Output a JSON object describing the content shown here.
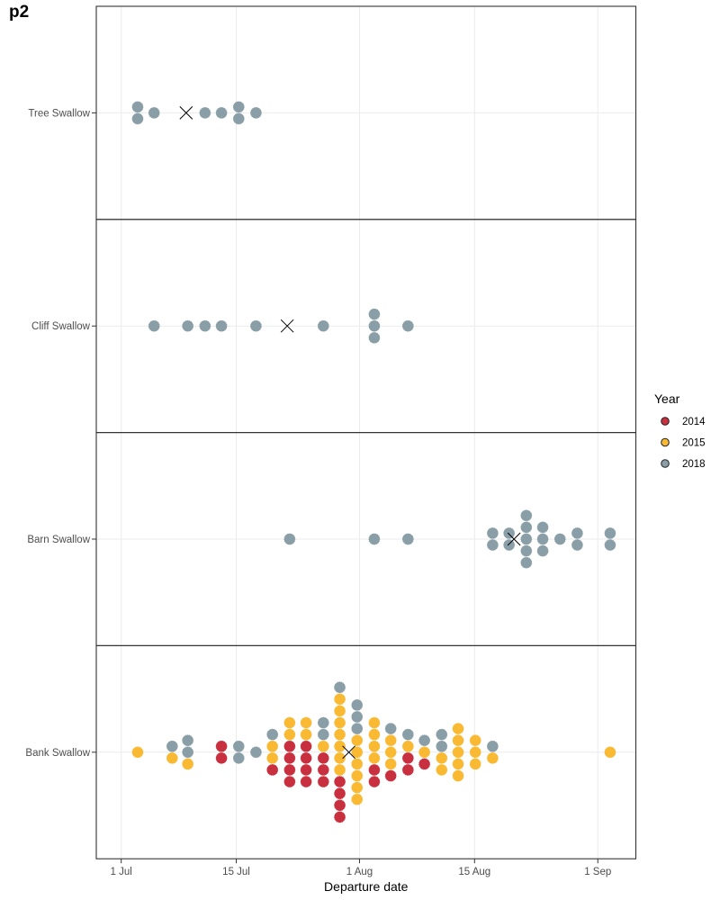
{
  "plot_tag": "p2",
  "chart_data": {
    "type": "dotplot",
    "title": "p2",
    "xlabel": "Departure date",
    "ylabel": "",
    "x_units": "days since 1 Jul",
    "xlim": [
      -2.9,
      62.9
    ],
    "x_ticks": [
      {
        "value": 0,
        "label": "1 Jul"
      },
      {
        "value": 14,
        "label": "15 Jul"
      },
      {
        "value": 29,
        "label": "1 Aug"
      },
      {
        "value": 43,
        "label": "15 Aug"
      },
      {
        "value": 58,
        "label": "1 Sep"
      }
    ],
    "grid": true,
    "legend": {
      "title": "Year",
      "position": "right",
      "entries": [
        {
          "label": "2014",
          "color": "#C9303F"
        },
        {
          "label": "2015",
          "color": "#F9B933"
        },
        {
          "label": "2018",
          "color": "#8A9EA7"
        }
      ]
    },
    "mean_marker": "cross",
    "panels": [
      {
        "species": "Tree Swallow",
        "mean": 7.9,
        "columns": [
          {
            "x": 2.0,
            "stack": [
              "2018",
              "2018"
            ]
          },
          {
            "x": 4.0,
            "stack": [
              "2018"
            ]
          },
          {
            "x": 10.2,
            "stack": [
              "2018"
            ]
          },
          {
            "x": 12.2,
            "stack": [
              "2018"
            ]
          },
          {
            "x": 14.3,
            "stack": [
              "2018",
              "2018"
            ]
          },
          {
            "x": 16.4,
            "stack": [
              "2018"
            ]
          }
        ]
      },
      {
        "species": "Cliff Swallow",
        "mean": 20.2,
        "columns": [
          {
            "x": 4.0,
            "stack": [
              "2018"
            ]
          },
          {
            "x": 8.1,
            "stack": [
              "2018"
            ]
          },
          {
            "x": 10.2,
            "stack": [
              "2018"
            ]
          },
          {
            "x": 12.2,
            "stack": [
              "2018"
            ]
          },
          {
            "x": 16.4,
            "stack": [
              "2018"
            ]
          },
          {
            "x": 24.6,
            "stack": [
              "2018"
            ]
          },
          {
            "x": 30.8,
            "stack": [
              "2018",
              "2018",
              "2018"
            ]
          },
          {
            "x": 34.9,
            "stack": [
              "2018"
            ]
          }
        ]
      },
      {
        "species": "Barn Swallow",
        "mean": 47.8,
        "columns": [
          {
            "x": 20.5,
            "stack": [
              "2018"
            ]
          },
          {
            "x": 30.8,
            "stack": [
              "2018"
            ]
          },
          {
            "x": 34.9,
            "stack": [
              "2018"
            ]
          },
          {
            "x": 45.2,
            "stack": [
              "2018",
              "2018"
            ]
          },
          {
            "x": 47.2,
            "stack": [
              "2018",
              "2018"
            ]
          },
          {
            "x": 49.3,
            "stack": [
              "2018",
              "2018",
              "2018",
              "2018",
              "2018"
            ]
          },
          {
            "x": 51.3,
            "stack": [
              "2018",
              "2018",
              "2018"
            ]
          },
          {
            "x": 53.4,
            "stack": [
              "2018"
            ]
          },
          {
            "x": 55.5,
            "stack": [
              "2018",
              "2018"
            ]
          },
          {
            "x": 59.5,
            "stack": [
              "2018",
              "2018"
            ]
          }
        ]
      },
      {
        "species": "Bank Swallow",
        "mean": 27.7,
        "columns": [
          {
            "x": 2.0,
            "stack": [
              "2015"
            ]
          },
          {
            "x": 6.2,
            "stack": [
              "2018",
              "2015"
            ]
          },
          {
            "x": 8.1,
            "stack": [
              "2018",
              "2018",
              "2015"
            ]
          },
          {
            "x": 12.2,
            "stack": [
              "2014",
              "2014"
            ]
          },
          {
            "x": 14.3,
            "stack": [
              "2018",
              "2018"
            ]
          },
          {
            "x": 16.4,
            "stack": [
              "2018"
            ]
          },
          {
            "x": 18.4,
            "stack": [
              "2018",
              "2015",
              "2015",
              "2014"
            ]
          },
          {
            "x": 20.5,
            "stack": [
              "2015",
              "2015",
              "2014",
              "2014",
              "2014",
              "2014"
            ]
          },
          {
            "x": 22.5,
            "stack": [
              "2015",
              "2015",
              "2014",
              "2014",
              "2014",
              "2014"
            ]
          },
          {
            "x": 24.6,
            "stack": [
              "2018",
              "2018",
              "2015",
              "2014",
              "2014",
              "2014"
            ]
          },
          {
            "x": 26.6,
            "stack": [
              "2018",
              "2015",
              "2015",
              "2015",
              "2015",
              "2015",
              "2015",
              "2015",
              "2014",
              "2014",
              "2014",
              "2014"
            ]
          },
          {
            "x": 28.7,
            "stack": [
              "2018",
              "2018",
              "2018",
              "2015",
              "2015",
              "2015",
              "2015",
              "2015",
              "2015"
            ]
          },
          {
            "x": 30.8,
            "stack": [
              "2015",
              "2015",
              "2015",
              "2015",
              "2014",
              "2014"
            ]
          },
          {
            "x": 32.8,
            "stack": [
              "2018",
              "2015",
              "2015",
              "2015",
              "2014"
            ]
          },
          {
            "x": 34.9,
            "stack": [
              "2018",
              "2015",
              "2014",
              "2014"
            ]
          },
          {
            "x": 36.9,
            "stack": [
              "2018",
              "2015",
              "2014"
            ]
          },
          {
            "x": 39.0,
            "stack": [
              "2018",
              "2018",
              "2015",
              "2015"
            ]
          },
          {
            "x": 41.0,
            "stack": [
              "2015",
              "2015",
              "2015",
              "2015",
              "2015"
            ]
          },
          {
            "x": 43.1,
            "stack": [
              "2015",
              "2015",
              "2015"
            ]
          },
          {
            "x": 45.2,
            "stack": [
              "2018",
              "2015"
            ]
          },
          {
            "x": 59.5,
            "stack": [
              "2015"
            ]
          }
        ]
      }
    ]
  }
}
